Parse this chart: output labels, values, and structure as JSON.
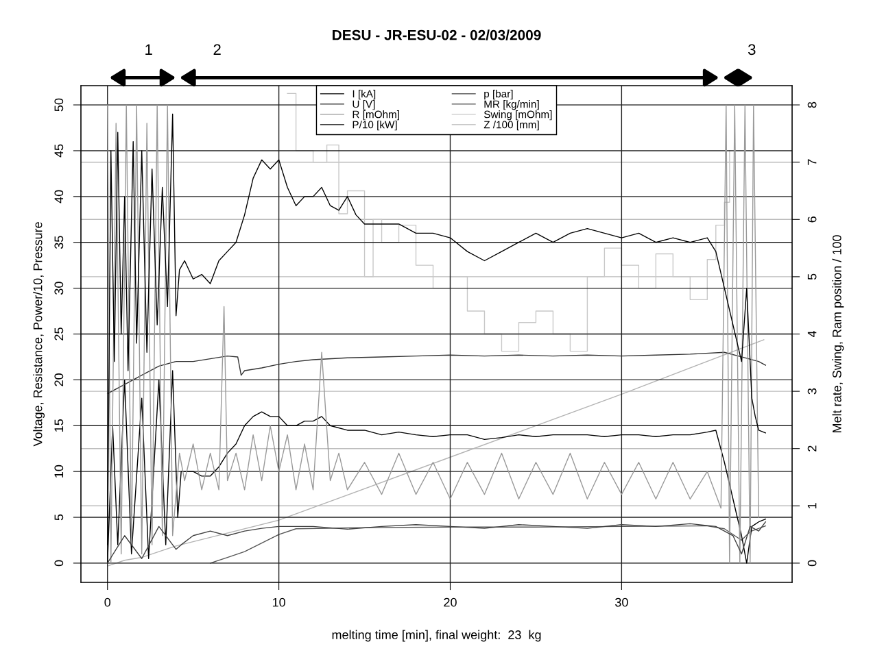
{
  "chart_data": {
    "type": "line",
    "title": "DESU - JR-ESU-02 - 02/03/2009",
    "xlabel": "melting time [min], final weight:  23  kg",
    "ylabel": "Voltage, Resistance, Power/10, Pressure",
    "y2label": "Melt rate, Swing, Ram position / 100",
    "xlim": [
      -1.55,
      39.95
    ],
    "ylim": [
      -2.1,
      52.1
    ],
    "y2lim": [
      -0.336,
      8.336
    ],
    "xticks": [
      0,
      10,
      20,
      30
    ],
    "yticks": [
      0,
      5,
      10,
      15,
      20,
      25,
      30,
      35,
      40,
      45,
      50
    ],
    "y2ticks": [
      0,
      1,
      2,
      3,
      4,
      5,
      6,
      7,
      8
    ],
    "grid": true,
    "legend": "top",
    "annotations": [
      "1",
      "2",
      "3"
    ],
    "series": [
      {
        "name": "I [kA]",
        "color": "#000000",
        "x": [
          0,
          0.3,
          0.6,
          1,
          1.4,
          2,
          2.4,
          3,
          3.4,
          3.8,
          4.1,
          4.3,
          5,
          5.5,
          6,
          6.5,
          7,
          7.5,
          8,
          8.5,
          9,
          9.5,
          10,
          10.5,
          11,
          11.5,
          12,
          12.5,
          13,
          14,
          15,
          16,
          17,
          18,
          19,
          20,
          21,
          22,
          23,
          24,
          25,
          26,
          27,
          28,
          29,
          30,
          31,
          32,
          33,
          34,
          35,
          35.5,
          36,
          36.5,
          37,
          37.3,
          37.6,
          38,
          38.4
        ],
        "values": [
          0,
          15,
          2,
          20,
          1,
          18,
          0.5,
          20,
          2,
          21,
          5,
          10,
          10,
          9.5,
          9.5,
          10.5,
          12,
          13,
          15,
          16,
          16.5,
          16,
          16,
          15,
          15,
          15.5,
          15.5,
          16,
          15,
          14.5,
          14.5,
          14,
          14.3,
          14,
          13.8,
          14,
          14,
          13.5,
          13.7,
          14,
          13.8,
          14,
          14,
          14,
          13.8,
          14,
          14,
          13.8,
          14,
          14,
          14.3,
          14.5,
          11,
          7,
          3,
          0,
          4,
          4.5,
          4.8
        ]
      },
      {
        "name": "U [V]",
        "color": "#333333",
        "x": [
          0,
          1,
          2,
          3,
          4,
          5,
          6,
          7,
          7.6,
          7.8,
          8,
          9,
          10,
          11,
          12,
          14,
          16,
          18,
          20,
          22,
          24,
          26,
          28,
          30,
          32,
          34,
          36,
          37,
          38,
          38.4
        ],
        "values": [
          18.5,
          19.5,
          20.5,
          21.5,
          22,
          22,
          22.3,
          22.6,
          22.5,
          20.5,
          21,
          21.3,
          21.7,
          22,
          22.2,
          22.4,
          22.5,
          22.6,
          22.7,
          22.6,
          22.7,
          22.6,
          22.7,
          22.6,
          22.7,
          22.8,
          23,
          22.5,
          22,
          21.6
        ]
      },
      {
        "name": "R [mOhm]",
        "color": "#999999",
        "x": [
          0,
          0.2,
          0.5,
          0.8,
          1.1,
          1.4,
          1.7,
          2,
          2.3,
          2.6,
          2.9,
          3.2,
          3.5,
          3.8,
          4.2,
          4.5,
          5,
          5.5,
          6,
          6.5,
          6.8,
          7,
          7.5,
          8,
          8.5,
          9,
          9.5,
          10,
          10.5,
          11,
          11.5,
          12,
          12.5,
          13,
          13.5,
          14,
          15,
          16,
          17,
          18,
          19,
          20,
          21,
          22,
          23,
          24,
          25,
          26,
          27,
          28,
          29,
          30,
          31,
          32,
          33,
          34,
          35,
          35.8,
          36.1,
          36.3,
          36.6,
          36.9,
          37.2,
          37.5,
          37.7,
          38
        ],
        "values": [
          50,
          0,
          48,
          1,
          50,
          2,
          50,
          1,
          48,
          2,
          50,
          3,
          50,
          3,
          12,
          9,
          13,
          8,
          12,
          8,
          28,
          9,
          12,
          8,
          14,
          9,
          15,
          10,
          14,
          8,
          13,
          8,
          23,
          9,
          12,
          8,
          11,
          7.5,
          12,
          7.5,
          11,
          7,
          11,
          7.5,
          12,
          7,
          11,
          7.5,
          12,
          7,
          11,
          7.5,
          11,
          7,
          11,
          7,
          10,
          6,
          50,
          0,
          50,
          0,
          50,
          0,
          50,
          5
        ]
      },
      {
        "name": "P/10 [kW]",
        "color": "#000000",
        "x": [
          0,
          0.2,
          0.4,
          0.6,
          0.8,
          1,
          1.2,
          1.5,
          1.7,
          2,
          2.3,
          2.6,
          2.9,
          3.2,
          3.5,
          3.8,
          4,
          4.2,
          4.5,
          5,
          5.5,
          6,
          6.5,
          7,
          7.5,
          8,
          8.5,
          9,
          9.5,
          10,
          10.5,
          11,
          11.5,
          12,
          12.5,
          13,
          13.5,
          14,
          14.5,
          15,
          16,
          17,
          18,
          19,
          20,
          21,
          22,
          23,
          24,
          25,
          26,
          27,
          28,
          29,
          30,
          31,
          32,
          33,
          34,
          35,
          35.5,
          36,
          36.5,
          37,
          37.3,
          37.6,
          37.8,
          38,
          38.4
        ],
        "values": [
          2,
          45,
          22,
          47,
          25,
          40,
          21,
          46,
          24,
          45,
          23,
          43,
          26,
          41,
          28,
          49,
          27,
          32,
          33,
          31,
          31.5,
          30.5,
          33,
          34,
          35,
          38,
          42,
          44,
          43,
          44,
          41,
          39,
          40,
          40,
          41,
          39,
          38.5,
          40,
          38,
          37,
          37,
          37,
          36,
          36,
          35.5,
          34,
          33,
          34,
          35,
          36,
          35,
          36,
          36.5,
          36,
          35.5,
          36,
          35,
          35.5,
          35,
          35.5,
          34,
          30,
          26,
          22,
          30,
          18,
          16,
          14.5,
          14.2
        ]
      },
      {
        "name": "p [bar]",
        "color": "#404040",
        "x": [
          0,
          1,
          2,
          3,
          4,
          4.3,
          5,
          6,
          7,
          8,
          9,
          10,
          12,
          14,
          16,
          18,
          20,
          22,
          24,
          26,
          28,
          30,
          32,
          34,
          35.5,
          36.5,
          37,
          37.5,
          38,
          38.4
        ],
        "values": [
          0,
          3,
          0.5,
          4,
          1.5,
          2,
          3,
          3.5,
          3,
          3.5,
          3.8,
          4,
          4,
          3.7,
          4,
          4.2,
          4,
          3.8,
          4.2,
          4,
          3.8,
          4.2,
          4,
          4.3,
          4,
          3,
          1,
          4,
          3.5,
          4.5
        ]
      },
      {
        "name": "MR [kg/min]",
        "color": "#555555",
        "axis": "y2",
        "x": [
          6,
          7,
          8,
          9,
          10,
          11,
          15,
          20,
          25,
          30,
          35,
          36,
          37,
          37.5,
          38.4
        ],
        "values": [
          0,
          0.1,
          0.2,
          0.35,
          0.5,
          0.6,
          0.62,
          0.63,
          0.63,
          0.64,
          0.65,
          0.6,
          0.4,
          0.55,
          0.65
        ]
      },
      {
        "name": "Swing [mOhm]",
        "color": "#c8c8c8",
        "type": "step",
        "axis": "y2",
        "x": [
          10.5,
          11,
          12,
          12.8,
          13.5,
          14,
          15,
          15.5,
          16,
          17,
          18,
          19,
          20,
          21,
          22,
          23,
          24,
          25,
          26,
          27,
          28,
          29,
          30,
          31,
          32,
          33,
          34,
          35,
          35.5,
          36,
          36.3
        ],
        "values": [
          8.2,
          7.2,
          7,
          7.3,
          6.1,
          6.5,
          5,
          6,
          5.6,
          5.9,
          5.2,
          4.8,
          5,
          4.4,
          4,
          3.7,
          4.2,
          4.4,
          4,
          3.7,
          5,
          5.5,
          5.2,
          4.8,
          5.4,
          5,
          4.6,
          5.3,
          5.9,
          6.3,
          7.2
        ]
      },
      {
        "name": "Z /100 [mm]",
        "color": "#b4b4b4",
        "axis": "y2",
        "x": [
          0,
          1,
          2,
          3,
          4,
          10,
          20,
          30,
          38.3
        ],
        "values": [
          -0.05,
          0.05,
          0.1,
          0.2,
          0.3,
          0.75,
          1.85,
          2.95,
          3.9
        ]
      }
    ]
  }
}
